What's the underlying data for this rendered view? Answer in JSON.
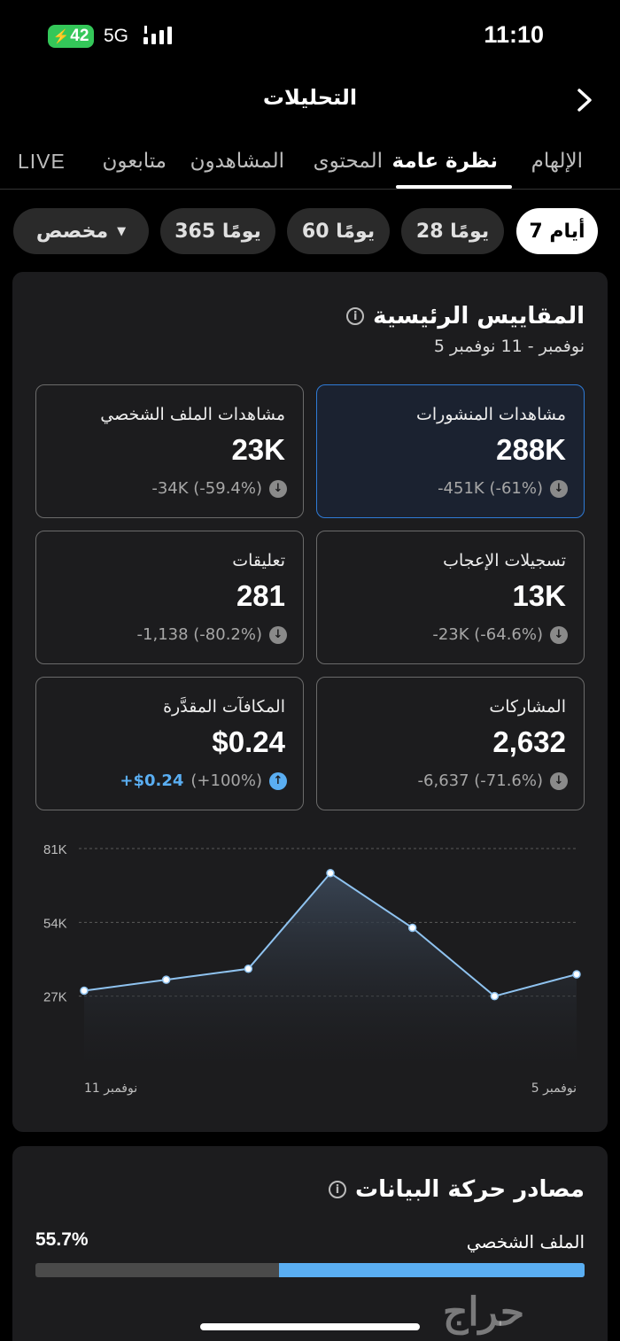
{
  "status_bar": {
    "time": "11:10",
    "battery": "42",
    "network": "5G"
  },
  "header": {
    "title": "التحليلات"
  },
  "tabs": [
    {
      "label": "الإلهام"
    },
    {
      "label": "نظرة عامة"
    },
    {
      "label": "المحتوى"
    },
    {
      "label": "المشاهدون"
    },
    {
      "label": "متابعون"
    },
    {
      "label": "LIVE"
    }
  ],
  "ranges": [
    {
      "label": "7 أيام"
    },
    {
      "label": "28 يومًا"
    },
    {
      "label": "60 يومًا"
    },
    {
      "label": "365 يومًا"
    },
    {
      "label": "مخصص"
    }
  ],
  "key_metrics": {
    "title": "المقاييس الرئيسية",
    "date_range": "5 نوفمبر - 11 نوفمبر",
    "cards": [
      {
        "label": "مشاهدات المنشورات",
        "value": "288K",
        "delta": "-451K (-61%)"
      },
      {
        "label": "مشاهدات الملف الشخصي",
        "value": "23K",
        "delta": "-34K (-59.4%)"
      },
      {
        "label": "تسجيلات الإعجاب",
        "value": "13K",
        "delta": "-23K (-64.6%)"
      },
      {
        "label": "تعليقات",
        "value": "281",
        "delta": "-1,138 (-80.2%)"
      },
      {
        "label": "المشاركات",
        "value": "2,632",
        "delta": "-6,637 (-71.6%)"
      },
      {
        "label": "المكافآت المقدَّرة",
        "value": "$0.24",
        "delta_value": "+$0.24",
        "delta_pct": "(+100%)"
      }
    ]
  },
  "chart_data": {
    "type": "area",
    "x": [
      "5 نوفمبر",
      "6 نوفمبر",
      "7 نوفمبر",
      "8 نوفمبر",
      "9 نوفمبر",
      "10 نوفمبر",
      "11 نوفمبر"
    ],
    "x_tick_labels": [
      "5 نوفمبر",
      "11 نوفمبر"
    ],
    "values": [
      35000,
      27000,
      52000,
      72000,
      37000,
      33000,
      29000
    ],
    "y_ticks": [
      "27K",
      "54K",
      "81K"
    ],
    "ylim": [
      0,
      81000
    ],
    "x_direction": "right-to-left",
    "grid": true,
    "color": "#8fc3f0"
  },
  "traffic": {
    "title": "مصادر حركة البيانات",
    "source_label": "الملف الشخصي",
    "percent_label": "55.7%",
    "percent": 55.7
  },
  "watermark": "حراج"
}
